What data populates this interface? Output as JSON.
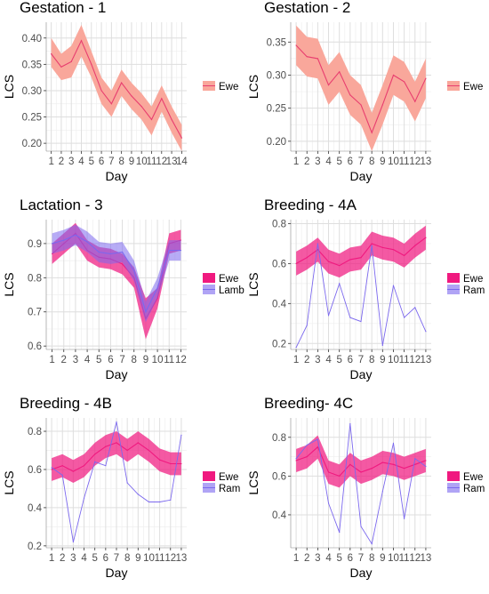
{
  "palette": {
    "ewe": "#f0197f",
    "ewe_band_gestation": "#f9a79b",
    "ewe_line_gestation": "#e83e6f",
    "lamb": "#7b68ee",
    "ram": "#7b68ee",
    "grid_major": "#dedede",
    "grid_minor": "#efefef",
    "axis": "#333333"
  },
  "chart_data": [
    {
      "id": "gestation-1",
      "type": "line",
      "title": "Gestation - 1",
      "xlabel": "Day",
      "ylabel": "LCS",
      "x": [
        1,
        2,
        3,
        4,
        5,
        6,
        7,
        8,
        9,
        10,
        11,
        12,
        13,
        14
      ],
      "xticks": [
        "1",
        "2",
        "3",
        "4",
        "5",
        "6",
        "7",
        "8",
        "9",
        "10",
        "11",
        "12",
        "13",
        "14"
      ],
      "ylim": [
        0.185,
        0.43
      ],
      "yticks": [
        0.2,
        0.25,
        0.3,
        0.35,
        0.4
      ],
      "ytick_labels": [
        "0.20",
        "0.25",
        "0.30",
        "0.35",
        "0.40"
      ],
      "legend": [
        {
          "label": "Ewe",
          "style": "gestation"
        }
      ],
      "series": [
        {
          "name": "Ewe",
          "style": "gestation",
          "line": "ribbon",
          "values": [
            0.37,
            0.345,
            0.355,
            0.395,
            0.35,
            0.3,
            0.275,
            0.315,
            0.29,
            0.27,
            0.245,
            0.285,
            0.245,
            0.21
          ],
          "lower": [
            0.345,
            0.32,
            0.325,
            0.365,
            0.325,
            0.275,
            0.25,
            0.29,
            0.265,
            0.245,
            0.215,
            0.26,
            0.22,
            0.185
          ],
          "upper": [
            0.4,
            0.37,
            0.385,
            0.425,
            0.375,
            0.325,
            0.3,
            0.34,
            0.315,
            0.295,
            0.27,
            0.31,
            0.27,
            0.235
          ]
        }
      ]
    },
    {
      "id": "gestation-2",
      "type": "line",
      "title": "Gestation - 2",
      "xlabel": "Day",
      "ylabel": "LCS",
      "x": [
        1,
        2,
        3,
        4,
        5,
        6,
        7,
        8,
        9,
        10,
        11,
        12,
        13
      ],
      "xticks": [
        "1",
        "2",
        "3",
        "4",
        "5",
        "6",
        "7",
        "8",
        "9",
        "10",
        "11",
        "12",
        "13"
      ],
      "ylim": [
        0.185,
        0.38
      ],
      "yticks": [
        0.2,
        0.25,
        0.3,
        0.35
      ],
      "ytick_labels": [
        "0.20",
        "0.25",
        "0.30",
        "0.35"
      ],
      "legend": [
        {
          "label": "Ewe",
          "style": "gestation"
        }
      ],
      "series": [
        {
          "name": "Ewe",
          "style": "gestation",
          "line": "ribbon",
          "values": [
            0.345,
            0.328,
            0.325,
            0.285,
            0.305,
            0.27,
            0.255,
            0.213,
            0.255,
            0.3,
            0.29,
            0.26,
            0.295
          ],
          "lower": [
            0.315,
            0.298,
            0.295,
            0.255,
            0.275,
            0.24,
            0.225,
            0.185,
            0.225,
            0.27,
            0.26,
            0.23,
            0.265
          ],
          "upper": [
            0.375,
            0.358,
            0.355,
            0.315,
            0.335,
            0.3,
            0.285,
            0.243,
            0.285,
            0.33,
            0.32,
            0.29,
            0.325
          ]
        }
      ]
    },
    {
      "id": "lactation-3",
      "type": "line",
      "title": "Lactation - 3",
      "xlabel": "Day",
      "ylabel": "LCS",
      "x": [
        1,
        2,
        3,
        4,
        5,
        6,
        7,
        8,
        9,
        10,
        11,
        12
      ],
      "xticks": [
        "1",
        "2",
        "3",
        "4",
        "5",
        "6",
        "7",
        "8",
        "9",
        "10",
        "11",
        "12"
      ],
      "ylim": [
        0.59,
        0.97
      ],
      "yticks": [
        0.6,
        0.7,
        0.8,
        0.9
      ],
      "ytick_labels": [
        "0.6",
        "0.7",
        "0.8",
        "0.9"
      ],
      "legend": [
        {
          "label": "Ewe",
          "style": "ewe"
        },
        {
          "label": "Lamb",
          "style": "purple"
        }
      ],
      "series": [
        {
          "name": "Ewe",
          "style": "ewe",
          "line": "ribbon",
          "values": [
            0.87,
            0.9,
            0.93,
            0.88,
            0.86,
            0.855,
            0.84,
            0.8,
            0.68,
            0.74,
            0.9,
            0.91
          ],
          "lower": [
            0.84,
            0.87,
            0.9,
            0.85,
            0.83,
            0.825,
            0.81,
            0.77,
            0.62,
            0.71,
            0.87,
            0.88
          ],
          "upper": [
            0.9,
            0.93,
            0.96,
            0.91,
            0.89,
            0.885,
            0.87,
            0.83,
            0.74,
            0.77,
            0.93,
            0.94
          ]
        },
        {
          "name": "Lamb",
          "style": "purple",
          "line": "ribbon",
          "values": [
            0.9,
            0.91,
            0.925,
            0.905,
            0.875,
            0.87,
            0.875,
            0.82,
            0.7,
            0.77,
            0.88,
            0.88
          ],
          "lower": [
            0.87,
            0.88,
            0.895,
            0.875,
            0.845,
            0.84,
            0.845,
            0.79,
            0.67,
            0.74,
            0.85,
            0.85
          ],
          "upper": [
            0.93,
            0.94,
            0.955,
            0.935,
            0.905,
            0.9,
            0.905,
            0.85,
            0.73,
            0.8,
            0.91,
            0.91
          ]
        }
      ]
    },
    {
      "id": "breeding-4a",
      "type": "line",
      "title": "Breeding - 4A",
      "xlabel": "Day",
      "ylabel": "LCS",
      "x": [
        1,
        2,
        3,
        4,
        5,
        6,
        7,
        8,
        9,
        10,
        11,
        12,
        13
      ],
      "xticks": [
        "1",
        "2",
        "3",
        "4",
        "5",
        "6",
        "7",
        "8",
        "9",
        "10",
        "11",
        "12",
        "13"
      ],
      "ylim": [
        0.17,
        0.82
      ],
      "yticks": [
        0.2,
        0.4,
        0.6,
        0.8
      ],
      "ytick_labels": [
        "0.2",
        "0.4",
        "0.6",
        "0.8"
      ],
      "legend": [
        {
          "label": "Ewe",
          "style": "ewe"
        },
        {
          "label": "Ram",
          "style": "purple"
        }
      ],
      "series": [
        {
          "name": "Ewe",
          "style": "ewe",
          "line": "ribbon",
          "values": [
            0.6,
            0.63,
            0.67,
            0.61,
            0.59,
            0.62,
            0.63,
            0.7,
            0.68,
            0.67,
            0.64,
            0.69,
            0.73
          ],
          "lower": [
            0.54,
            0.57,
            0.61,
            0.55,
            0.53,
            0.56,
            0.57,
            0.64,
            0.62,
            0.61,
            0.58,
            0.63,
            0.67
          ],
          "upper": [
            0.66,
            0.69,
            0.73,
            0.67,
            0.65,
            0.68,
            0.69,
            0.76,
            0.74,
            0.73,
            0.7,
            0.75,
            0.79
          ]
        },
        {
          "name": "Ram",
          "style": "purple",
          "line": "thin",
          "values": [
            0.18,
            0.29,
            0.7,
            0.34,
            0.5,
            0.33,
            0.31,
            0.69,
            0.19,
            0.49,
            0.33,
            0.38,
            0.26
          ]
        }
      ]
    },
    {
      "id": "breeding-4b",
      "type": "line",
      "title": "Breeding - 4B",
      "xlabel": "Day",
      "ylabel": "LCS",
      "x": [
        1,
        2,
        3,
        4,
        5,
        6,
        7,
        8,
        9,
        10,
        11,
        12,
        13
      ],
      "xticks": [
        "1",
        "2",
        "3",
        "4",
        "5",
        "6",
        "7",
        "8",
        "9",
        "10",
        "11",
        "12",
        "13"
      ],
      "ylim": [
        0.19,
        0.87
      ],
      "yticks": [
        0.2,
        0.4,
        0.6,
        0.8
      ],
      "ytick_labels": [
        "0.2",
        "0.4",
        "0.6",
        "0.8"
      ],
      "legend": [
        {
          "label": "Ewe",
          "style": "ewe"
        },
        {
          "label": "Ram",
          "style": "purple"
        }
      ],
      "series": [
        {
          "name": "Ewe",
          "style": "ewe",
          "line": "ribbon",
          "values": [
            0.6,
            0.62,
            0.59,
            0.62,
            0.68,
            0.72,
            0.74,
            0.7,
            0.74,
            0.7,
            0.65,
            0.63,
            0.63
          ],
          "lower": [
            0.54,
            0.56,
            0.53,
            0.56,
            0.62,
            0.66,
            0.68,
            0.64,
            0.68,
            0.64,
            0.59,
            0.57,
            0.57
          ],
          "upper": [
            0.66,
            0.68,
            0.65,
            0.68,
            0.74,
            0.78,
            0.8,
            0.76,
            0.8,
            0.76,
            0.71,
            0.69,
            0.69
          ]
        },
        {
          "name": "Ram",
          "style": "purple",
          "line": "thin",
          "values": [
            0.61,
            0.57,
            0.22,
            0.45,
            0.64,
            0.62,
            0.85,
            0.53,
            0.47,
            0.43,
            0.43,
            0.44,
            0.78
          ]
        }
      ]
    },
    {
      "id": "breeding-4c",
      "type": "line",
      "title": "Breeding- 4C",
      "xlabel": "Day",
      "ylabel": "LCS",
      "x": [
        1,
        2,
        3,
        4,
        5,
        6,
        7,
        8,
        9,
        10,
        11,
        12,
        13
      ],
      "xticks": [
        "1",
        "2",
        "3",
        "4",
        "5",
        "6",
        "7",
        "8",
        "9",
        "10",
        "11",
        "12",
        "13"
      ],
      "ylim": [
        0.23,
        0.9
      ],
      "yticks": [
        0.4,
        0.6,
        0.8
      ],
      "ytick_labels": [
        "0.4",
        "0.6",
        "0.8"
      ],
      "legend": [
        {
          "label": "Ewe",
          "style": "ewe"
        },
        {
          "label": "Ram",
          "style": "purple"
        }
      ],
      "series": [
        {
          "name": "Ewe",
          "style": "ewe",
          "line": "ribbon",
          "values": [
            0.68,
            0.7,
            0.75,
            0.62,
            0.6,
            0.66,
            0.62,
            0.64,
            0.67,
            0.66,
            0.64,
            0.66,
            0.68
          ],
          "lower": [
            0.62,
            0.64,
            0.69,
            0.56,
            0.54,
            0.6,
            0.56,
            0.58,
            0.61,
            0.6,
            0.58,
            0.6,
            0.62
          ],
          "upper": [
            0.74,
            0.76,
            0.81,
            0.68,
            0.66,
            0.72,
            0.68,
            0.7,
            0.73,
            0.72,
            0.7,
            0.72,
            0.74
          ]
        },
        {
          "name": "Ram",
          "style": "purple",
          "line": "thin",
          "values": [
            0.69,
            0.76,
            0.79,
            0.46,
            0.31,
            0.87,
            0.34,
            0.25,
            0.52,
            0.77,
            0.38,
            0.69,
            0.65
          ]
        }
      ]
    }
  ]
}
